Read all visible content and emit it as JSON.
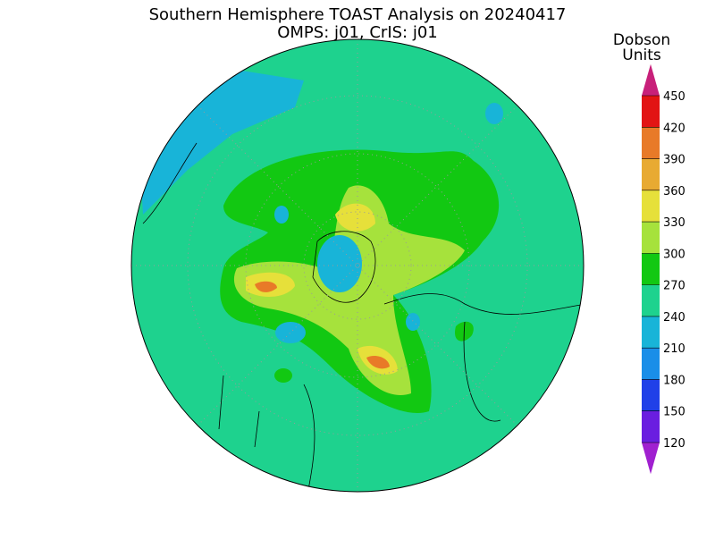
{
  "title": "Southern Hemisphere TOAST Analysis on 20240417",
  "subtitle": "OMPS: j01, CrIS: j01",
  "colorbar": {
    "label_lines": [
      "Dobson",
      "Units"
    ],
    "ticks": [
      120,
      150,
      180,
      210,
      240,
      270,
      300,
      330,
      360,
      390,
      420,
      450
    ],
    "colors": [
      "#a020d0",
      "#6a1ee0",
      "#2040e8",
      "#1a8ee8",
      "#18b4d8",
      "#1ed28e",
      "#12c812",
      "#a6e23c",
      "#e6e03a",
      "#e8aa32",
      "#e87a28",
      "#e21414",
      "#c8207a"
    ]
  }
}
